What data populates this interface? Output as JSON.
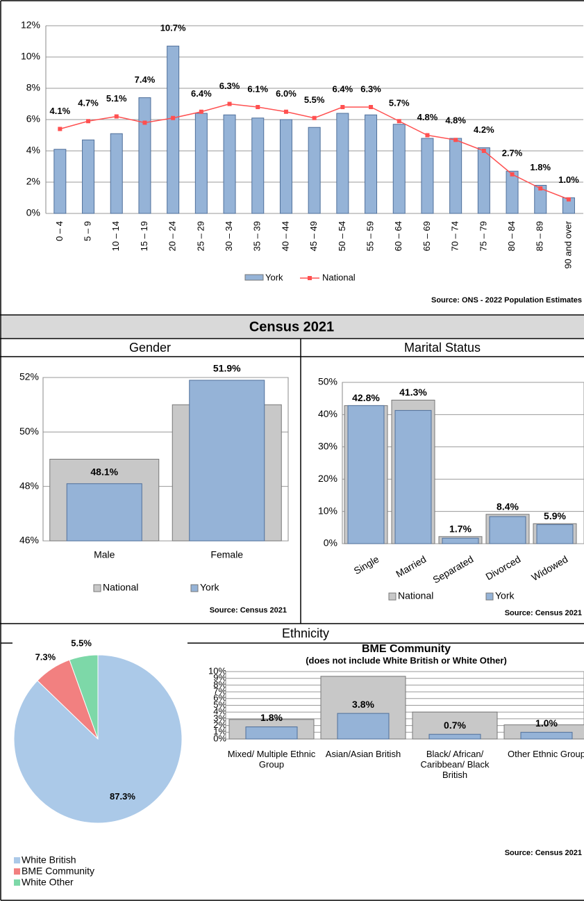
{
  "sections": {
    "census": "Census 2021",
    "gender": "Gender",
    "marital": "Marital Status",
    "ethnicity": "Ethnicity"
  },
  "chart_data": [
    {
      "type": "bar",
      "categories": [
        "0 – 4",
        "5 – 9",
        "10 – 14",
        "15 – 19",
        "20 – 24",
        "25 – 29",
        "30 – 34",
        "35 – 39",
        "40 – 44",
        "45 – 49",
        "50 – 54",
        "55 – 59",
        "60 – 64",
        "65 – 69",
        "70 – 74",
        "75 – 79",
        "80 – 84",
        "85 – 89",
        "90 and over"
      ],
      "series": [
        {
          "name": "York",
          "type": "bar",
          "color": "#95b3d7",
          "values": [
            4.1,
            4.7,
            5.1,
            7.4,
            10.7,
            6.4,
            6.3,
            6.1,
            6.0,
            5.5,
            6.4,
            6.3,
            5.7,
            4.8,
            4.8,
            4.2,
            2.7,
            1.8,
            1.0
          ],
          "value_labels": [
            "4.1%",
            "4.7%",
            "5.1%",
            "7.4%",
            "10.7%",
            "6.4%",
            "6.3%",
            "6.1%",
            "6.0%",
            "5.5%",
            "6.4%",
            "6.3%",
            "5.7%",
            "4.8%",
            "4.8%",
            "4.2%",
            "2.7%",
            "1.8%",
            "1.0%"
          ]
        },
        {
          "name": "National",
          "type": "line",
          "color": "#ff5050",
          "values": [
            5.4,
            5.9,
            6.2,
            5.8,
            6.1,
            6.5,
            7.0,
            6.8,
            6.5,
            6.1,
            6.8,
            6.8,
            5.9,
            5.0,
            4.7,
            4.0,
            2.5,
            1.6,
            0.9
          ]
        }
      ],
      "ylim": [
        0,
        12
      ],
      "yticks": [
        {
          "value": 0,
          "label": "0%"
        },
        {
          "value": 2,
          "label": "2%"
        },
        {
          "value": 4,
          "label": "4%"
        },
        {
          "value": 6,
          "label": "6%"
        },
        {
          "value": 8,
          "label": "8%"
        },
        {
          "value": 10,
          "label": "10%"
        },
        {
          "value": 12,
          "label": "12%"
        }
      ],
      "grid": true,
      "source": "Source: ONS - 2022 Population Estimates"
    },
    {
      "type": "bar",
      "categories": [
        "Male",
        "Female"
      ],
      "series": [
        {
          "name": "National",
          "type": "bar",
          "color": "#c8c8c8",
          "values": [
            49.0,
            51.0
          ]
        },
        {
          "name": "York",
          "type": "bar",
          "color": "#95b3d7",
          "values": [
            48.1,
            51.9
          ],
          "value_labels": [
            "48.1%",
            "51.9%"
          ]
        }
      ],
      "ylim": [
        46,
        52
      ],
      "yticks": [
        {
          "value": 46,
          "label": "46%"
        },
        {
          "value": 48,
          "label": "48%"
        },
        {
          "value": 50,
          "label": "50%"
        },
        {
          "value": 52,
          "label": "52%"
        }
      ],
      "grid": true,
      "source": "Source: Census 2021"
    },
    {
      "type": "bar",
      "categories": [
        "Single",
        "Married",
        "Separated",
        "Divorced",
        "Widowed"
      ],
      "series": [
        {
          "name": "National",
          "type": "bar",
          "color": "#c8c8c8",
          "values": [
            42.8,
            44.5,
            2.2,
            9.1,
            6.2
          ]
        },
        {
          "name": "York",
          "type": "bar",
          "color": "#95b3d7",
          "values": [
            42.8,
            41.3,
            1.7,
            8.4,
            5.9
          ],
          "value_labels": [
            "42.8%",
            "41.3%",
            "1.7%",
            "8.4%",
            "5.9%"
          ]
        }
      ],
      "ylim": [
        0,
        50
      ],
      "yticks": [
        {
          "value": 0,
          "label": "0%"
        },
        {
          "value": 10,
          "label": "10%"
        },
        {
          "value": 20,
          "label": "20%"
        },
        {
          "value": 30,
          "label": "30%"
        },
        {
          "value": 40,
          "label": "40%"
        },
        {
          "value": 50,
          "label": "50%"
        }
      ],
      "grid": true,
      "source": "Source: Census 2021"
    },
    {
      "type": "pie",
      "categories": [
        "White British",
        "BME Community",
        "White Other"
      ],
      "values": [
        87.3,
        7.3,
        5.5
      ],
      "value_labels": [
        "87.3%",
        "7.3%",
        "5.5%"
      ],
      "colors": [
        "#abc9e8",
        "#f28080",
        "#7dd8a8"
      ]
    },
    {
      "type": "bar",
      "title": "BME Community",
      "subtitle": "(does not include White British or White Other)",
      "categories": [
        "Mixed/ Multiple Ethnic Group",
        "Asian/Asian British",
        "Black/ African/ Caribbean/ Black British",
        "Other Ethnic Group"
      ],
      "series": [
        {
          "name": "National",
          "type": "bar",
          "color": "#c8c8c8",
          "values": [
            2.9,
            9.3,
            4.0,
            2.1
          ]
        },
        {
          "name": "York",
          "type": "bar",
          "color": "#95b3d7",
          "values": [
            1.8,
            3.8,
            0.7,
            1.0
          ],
          "value_labels": [
            "1.8%",
            "3.8%",
            "0.7%",
            "1.0%"
          ]
        }
      ],
      "ylim": [
        0,
        10
      ],
      "yticks": [
        {
          "value": 0,
          "label": "0%"
        },
        {
          "value": 1,
          "label": "1%"
        },
        {
          "value": 2,
          "label": "2%"
        },
        {
          "value": 3,
          "label": "3%"
        },
        {
          "value": 4,
          "label": "4%"
        },
        {
          "value": 5,
          "label": "5%"
        },
        {
          "value": 6,
          "label": "6%"
        },
        {
          "value": 7,
          "label": "7%"
        },
        {
          "value": 8,
          "label": "8%"
        },
        {
          "value": 9,
          "label": "9%"
        },
        {
          "value": 10,
          "label": "10%"
        }
      ],
      "grid": true,
      "source": "Source: Census 2021"
    }
  ]
}
